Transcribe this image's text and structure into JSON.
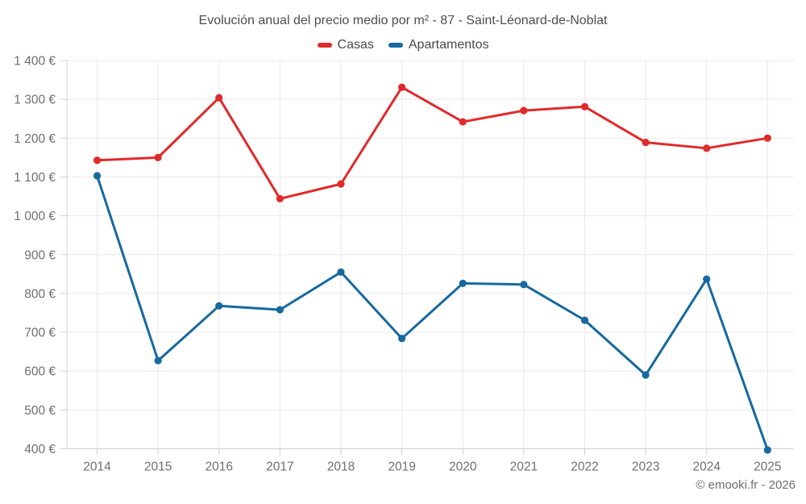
{
  "header": {
    "title": "Evolución anual del precio medio por m² - 87 - Saint-Léonard-de-Noblat"
  },
  "footer": {
    "attribution": "© emooki.fr - 2026"
  },
  "colors": {
    "casas": "#e02a2b",
    "apartamentos": "#17699f",
    "grid": "#e9e9e9",
    "axis": "#cfcfcf",
    "axis_label": "#6f6f6f",
    "title_text": "#4d4d4d",
    "background": "#ffffff"
  },
  "chart_data": {
    "type": "line",
    "title": "Evolución anual del precio medio por m² - 87 - Saint-Léonard-de-Noblat",
    "categories": [
      "2014",
      "2015",
      "2016",
      "2017",
      "2018",
      "2019",
      "2020",
      "2021",
      "2022",
      "2023",
      "2024",
      "2025"
    ],
    "series": [
      {
        "name": "Casas",
        "color": "#e02a2b",
        "values": [
          1143,
          1150,
          1304,
          1044,
          1082,
          1331,
          1242,
          1271,
          1281,
          1189,
          1174,
          1200
        ]
      },
      {
        "name": "Apartamentos",
        "color": "#17699f",
        "values": [
          1103,
          627,
          768,
          758,
          855,
          684,
          826,
          823,
          731,
          590,
          837,
          397
        ]
      }
    ],
    "xlabel": "",
    "ylabel": "",
    "ylim": [
      400,
      1400
    ],
    "ytick_step": 100,
    "ytick_labels": [
      "400 €",
      "500 €",
      "600 €",
      "700 €",
      "800 €",
      "900 €",
      "1 000 €",
      "1 100 €",
      "1 200 €",
      "1 300 €",
      "1 400 €"
    ],
    "grid": true,
    "legend_position": "top"
  }
}
